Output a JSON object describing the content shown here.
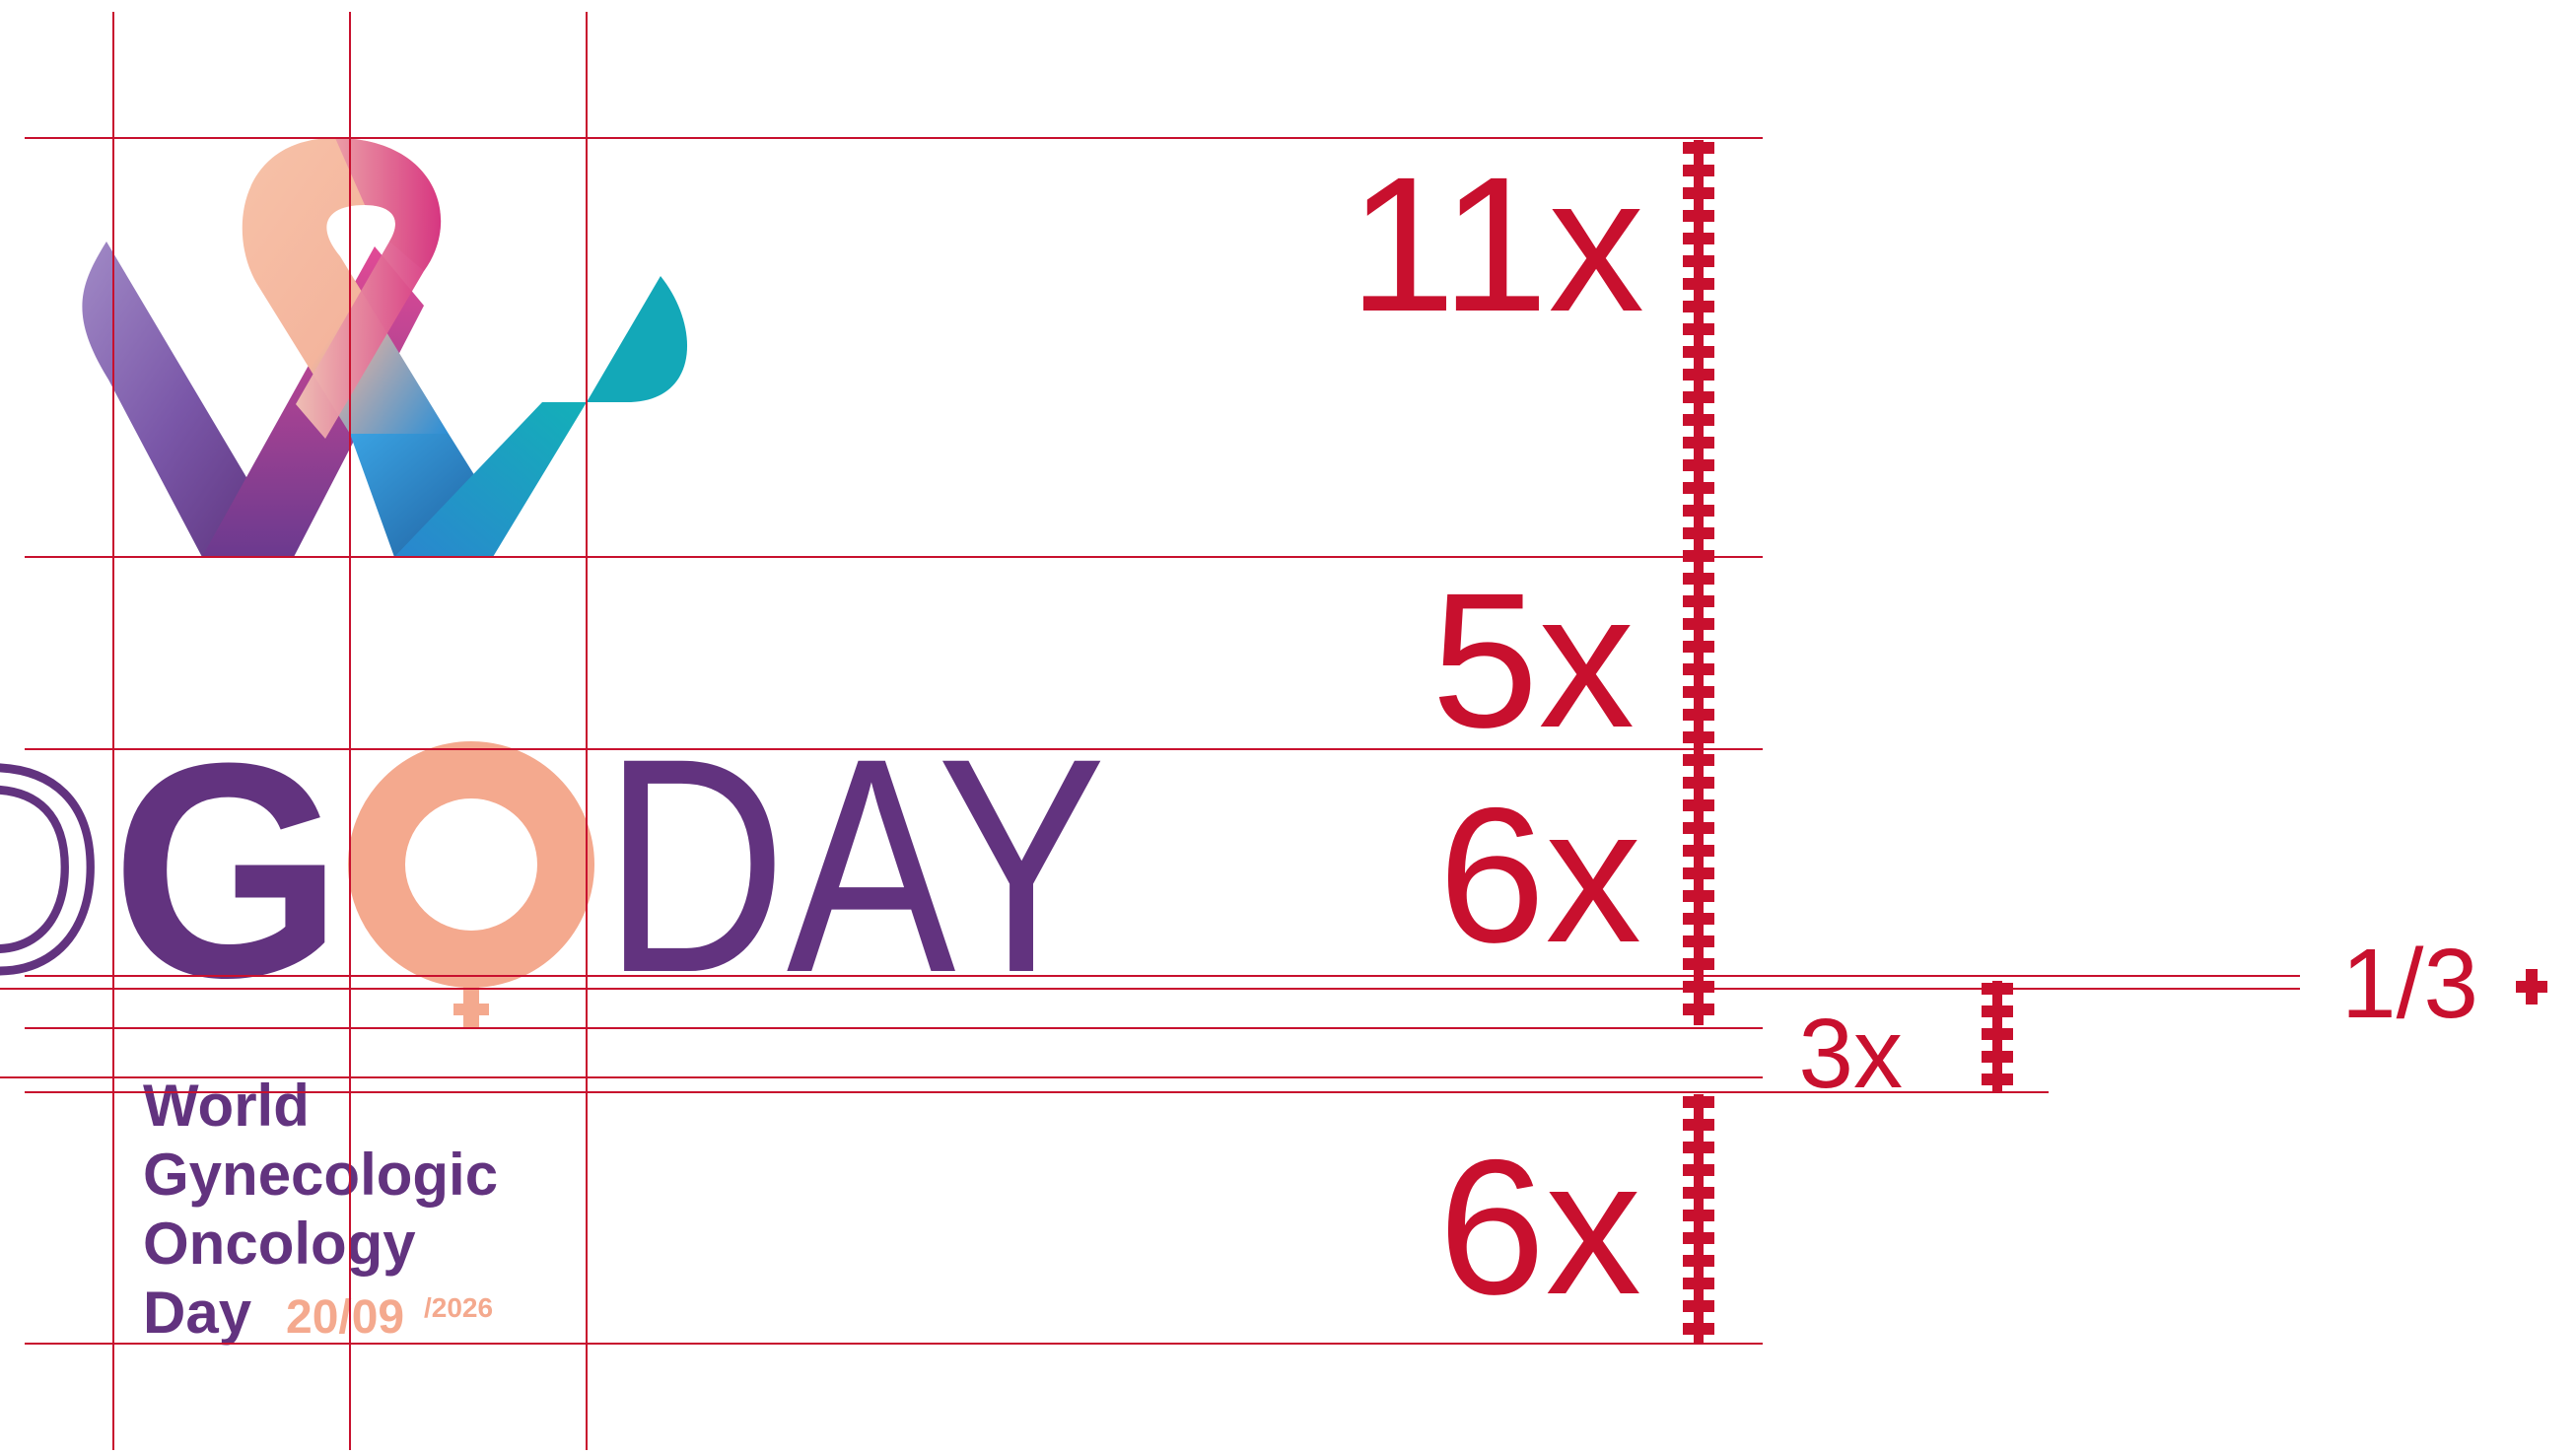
{
  "colors": {
    "guide_red": "#c8102e",
    "purple": "#62337f",
    "peach": "#f4a98e",
    "teal": "#13a8b8",
    "magenta": "#d6307f",
    "blue": "#2b8fd6",
    "lavender": "#a18ac6"
  },
  "logo": {
    "wordmark": [
      "D",
      "G",
      "O",
      "DAY"
    ],
    "tagline_lines": [
      "World",
      "Gynecologic",
      "Oncology"
    ],
    "tagline_last_word": "Day",
    "date": "20/09",
    "year": "/2026",
    "icons": [
      "ribbon-w-symbol-icon",
      "female-symbol-icon"
    ]
  },
  "measurements": {
    "main_column": [
      "11x",
      "5x",
      "6x",
      "6x"
    ],
    "small_gap": "3x",
    "fraction": "1/3"
  }
}
